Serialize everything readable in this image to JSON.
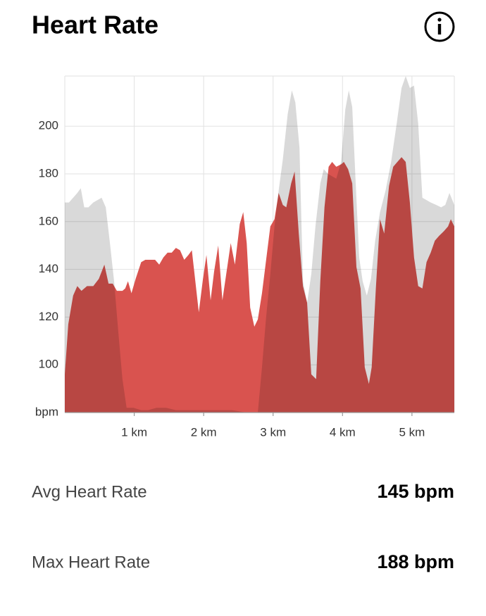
{
  "chart_data": {
    "type": "area",
    "title": "Heart Rate",
    "xlim": [
      0,
      5.61
    ],
    "xticks": [
      {
        "value": 1,
        "label": "1 km"
      },
      {
        "value": 2,
        "label": "2 km"
      },
      {
        "value": 3,
        "label": "3 km"
      },
      {
        "value": 4,
        "label": "4 km"
      },
      {
        "value": 5,
        "label": "5 km"
      }
    ],
    "ylim": [
      80,
      221
    ],
    "yticks": [
      {
        "value": 80,
        "label": "bpm"
      },
      100,
      120,
      140,
      160,
      180,
      200
    ],
    "grid": true,
    "series": [
      {
        "color": "#d9534f",
        "x": [
          0.0,
          0.05,
          0.12,
          0.18,
          0.24,
          0.32,
          0.41,
          0.49,
          0.57,
          0.63,
          0.69,
          0.75,
          0.83,
          0.87,
          0.91,
          0.96,
          1.02,
          1.1,
          1.16,
          1.24,
          1.3,
          1.36,
          1.42,
          1.48,
          1.54,
          1.6,
          1.66,
          1.72,
          1.78,
          1.83,
          1.93,
          1.99,
          2.04,
          2.1,
          2.15,
          2.21,
          2.27,
          2.34,
          2.39,
          2.45,
          2.52,
          2.57,
          2.62,
          2.67,
          2.73,
          2.78,
          2.84,
          2.9,
          2.96,
          3.02,
          3.08,
          3.14,
          3.19,
          3.26,
          3.31,
          3.37,
          3.43,
          3.49,
          3.55,
          3.62,
          3.68,
          3.74,
          3.8,
          3.85,
          3.91,
          3.98,
          4.02,
          4.08,
          4.14,
          4.2,
          4.26,
          4.32,
          4.38,
          4.42,
          4.48,
          4.54,
          4.6,
          4.67,
          4.73,
          4.79,
          4.85,
          4.91,
          4.97,
          5.03,
          5.09,
          5.15,
          5.21,
          5.27,
          5.33,
          5.39,
          5.46,
          5.52,
          5.56,
          5.61
        ],
        "values": [
          96,
          117,
          129,
          133,
          131,
          133,
          133,
          136,
          142,
          134,
          134,
          131,
          131,
          132,
          135,
          130,
          136,
          143,
          144,
          144,
          144,
          142,
          145,
          147,
          147,
          149,
          148,
          144,
          146,
          148,
          122,
          136,
          146,
          127,
          139,
          150,
          127,
          141,
          151,
          142,
          159,
          164,
          151,
          124,
          116,
          119,
          130,
          144,
          158,
          161,
          172,
          167,
          166,
          176,
          181,
          155,
          133,
          126,
          96,
          94,
          135,
          166,
          183,
          185,
          183,
          184,
          185,
          182,
          176,
          141,
          132,
          99,
          92,
          99,
          132,
          161,
          155,
          175,
          183,
          185,
          187,
          185,
          168,
          145,
          133,
          132,
          143,
          147,
          152,
          154,
          156,
          158,
          161,
          158
        ]
      },
      {
        "color": "#d9d9d9",
        "x": [
          0.0,
          0.06,
          0.12,
          0.18,
          0.23,
          0.28,
          0.34,
          0.41,
          0.47,
          0.53,
          0.59,
          0.65,
          0.71,
          0.77,
          0.83,
          0.89,
          0.99,
          1.1,
          1.2,
          1.32,
          1.46,
          1.6,
          1.8,
          2.01,
          2.21,
          2.41,
          2.62,
          2.78,
          2.84,
          2.9,
          2.96,
          3.02,
          3.08,
          3.14,
          3.21,
          3.27,
          3.32,
          3.38,
          3.43,
          3.49,
          3.55,
          3.61,
          3.68,
          3.73,
          3.79,
          3.85,
          3.91,
          3.98,
          4.04,
          4.09,
          4.14,
          4.19,
          4.24,
          4.29,
          4.35,
          4.41,
          4.47,
          4.54,
          4.62,
          4.7,
          4.78,
          4.85,
          4.91,
          4.97,
          5.03,
          5.09,
          5.15,
          5.21,
          5.27,
          5.35,
          5.42,
          5.48,
          5.54,
          5.61
        ],
        "values": [
          168,
          168,
          170,
          172,
          174,
          166,
          166,
          168,
          169,
          170,
          166,
          151,
          135,
          114,
          94,
          82,
          82,
          81,
          81,
          82,
          82,
          81,
          81,
          81,
          81,
          81,
          80,
          80,
          99,
          120,
          138,
          158,
          173,
          186,
          205,
          215,
          210,
          191,
          135,
          126,
          138,
          158,
          176,
          182,
          180,
          179,
          178,
          185,
          207,
          215,
          208,
          176,
          145,
          135,
          129,
          136,
          152,
          164,
          173,
          185,
          201,
          216,
          221,
          216,
          217,
          201,
          170,
          169,
          168,
          167,
          166,
          167,
          172,
          167
        ]
      }
    ]
  },
  "stats": [
    {
      "label": "Avg Heart Rate",
      "value": "145 bpm"
    },
    {
      "label": "Max Heart Rate",
      "value": "188 bpm"
    }
  ]
}
